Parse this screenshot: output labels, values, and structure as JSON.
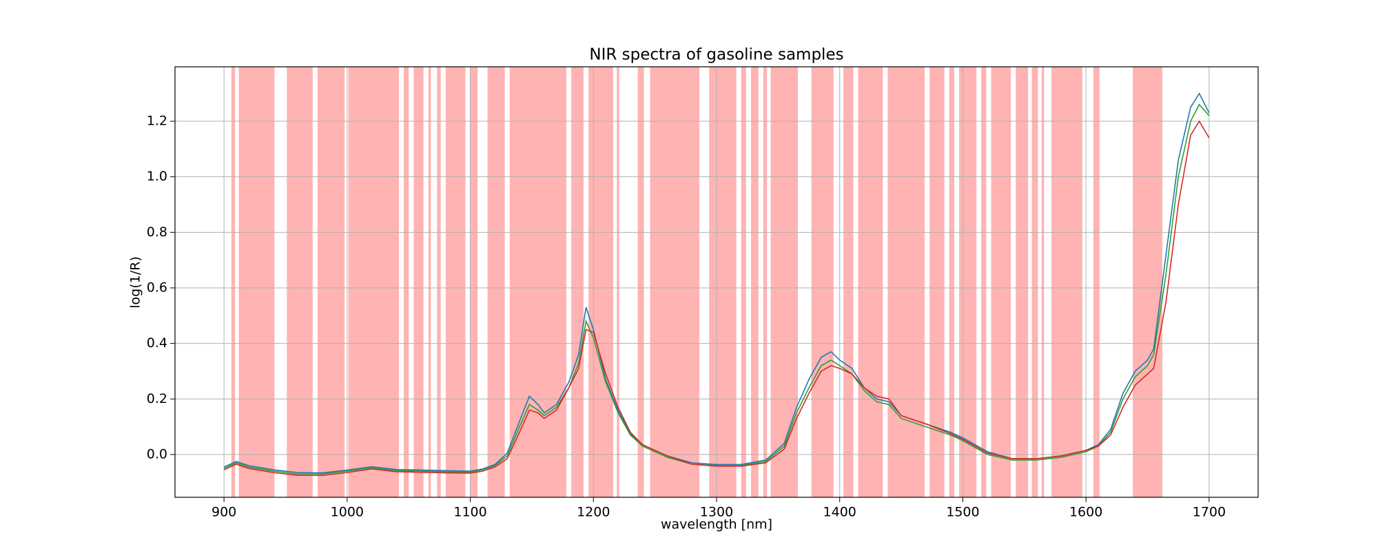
{
  "chart_data": {
    "type": "line",
    "title": "NIR spectra of gasoline samples",
    "xlabel": "wavelength [nm]",
    "ylabel": "log(1/R)",
    "x": [
      900,
      905,
      910,
      920,
      940,
      960,
      980,
      1000,
      1020,
      1040,
      1060,
      1080,
      1100,
      1110,
      1120,
      1130,
      1140,
      1148,
      1155,
      1160,
      1170,
      1180,
      1188,
      1194,
      1200,
      1210,
      1220,
      1230,
      1240,
      1260,
      1280,
      1300,
      1320,
      1340,
      1355,
      1365,
      1375,
      1385,
      1393,
      1400,
      1410,
      1420,
      1430,
      1440,
      1450,
      1470,
      1490,
      1500,
      1520,
      1540,
      1560,
      1580,
      1600,
      1610,
      1620,
      1630,
      1640,
      1650,
      1655,
      1665,
      1675,
      1685,
      1692,
      1700
    ],
    "series": [
      {
        "color": "#1f77b4",
        "values": [
          -0.045,
          -0.035,
          -0.025,
          -0.04,
          -0.055,
          -0.065,
          -0.066,
          -0.056,
          -0.044,
          -0.054,
          -0.056,
          -0.058,
          -0.06,
          -0.052,
          -0.036,
          0.005,
          0.12,
          0.21,
          0.18,
          0.15,
          0.18,
          0.26,
          0.36,
          0.53,
          0.45,
          0.27,
          0.16,
          0.075,
          0.035,
          -0.005,
          -0.03,
          -0.036,
          -0.036,
          -0.02,
          0.04,
          0.17,
          0.27,
          0.35,
          0.37,
          0.34,
          0.31,
          0.24,
          0.2,
          0.19,
          0.14,
          0.11,
          0.08,
          0.06,
          0.01,
          -0.015,
          -0.015,
          -0.005,
          0.015,
          0.035,
          0.09,
          0.22,
          0.3,
          0.34,
          0.38,
          0.72,
          1.06,
          1.25,
          1.3,
          1.23
        ]
      },
      {
        "color": "#2ca02c",
        "values": [
          -0.05,
          -0.04,
          -0.03,
          -0.045,
          -0.06,
          -0.07,
          -0.07,
          -0.06,
          -0.048,
          -0.058,
          -0.06,
          -0.062,
          -0.063,
          -0.055,
          -0.04,
          -0.005,
          0.1,
          0.18,
          0.16,
          0.14,
          0.17,
          0.24,
          0.33,
          0.48,
          0.42,
          0.26,
          0.15,
          0.07,
          0.03,
          -0.01,
          -0.035,
          -0.04,
          -0.04,
          -0.025,
          0.03,
          0.15,
          0.24,
          0.32,
          0.34,
          0.32,
          0.29,
          0.23,
          0.19,
          0.18,
          0.13,
          0.1,
          0.07,
          0.05,
          0.0,
          -0.02,
          -0.02,
          -0.01,
          0.01,
          0.03,
          0.08,
          0.2,
          0.28,
          0.32,
          0.36,
          0.65,
          1.0,
          1.2,
          1.26,
          1.22
        ]
      },
      {
        "color": "#d62728",
        "values": [
          -0.055,
          -0.045,
          -0.035,
          -0.05,
          -0.065,
          -0.075,
          -0.075,
          -0.065,
          -0.052,
          -0.062,
          -0.064,
          -0.066,
          -0.067,
          -0.06,
          -0.045,
          -0.015,
          0.08,
          0.16,
          0.15,
          0.13,
          0.16,
          0.24,
          0.31,
          0.45,
          0.44,
          0.29,
          0.17,
          0.08,
          0.035,
          -0.005,
          -0.035,
          -0.042,
          -0.042,
          -0.03,
          0.02,
          0.13,
          0.22,
          0.3,
          0.32,
          0.31,
          0.29,
          0.24,
          0.21,
          0.2,
          0.14,
          0.11,
          0.075,
          0.055,
          0.005,
          -0.015,
          -0.015,
          -0.005,
          0.015,
          0.03,
          0.07,
          0.17,
          0.25,
          0.29,
          0.31,
          0.55,
          0.9,
          1.15,
          1.2,
          1.14
        ]
      }
    ],
    "regions": [
      [
        906,
        909
      ],
      [
        912,
        941
      ],
      [
        951,
        972
      ],
      [
        976,
        998
      ],
      [
        1001,
        1042
      ],
      [
        1046,
        1050
      ],
      [
        1054,
        1062
      ],
      [
        1066,
        1068
      ],
      [
        1073,
        1076
      ],
      [
        1080,
        1096
      ],
      [
        1100,
        1106
      ],
      [
        1114,
        1128
      ],
      [
        1132,
        1178
      ],
      [
        1182,
        1192
      ],
      [
        1196,
        1216
      ],
      [
        1219,
        1221
      ],
      [
        1236,
        1241
      ],
      [
        1246,
        1286
      ],
      [
        1294,
        1316
      ],
      [
        1320,
        1324
      ],
      [
        1328,
        1334
      ],
      [
        1338,
        1341
      ],
      [
        1344,
        1366
      ],
      [
        1377,
        1395
      ],
      [
        1403,
        1411
      ],
      [
        1415,
        1435
      ],
      [
        1439,
        1469
      ],
      [
        1473,
        1485
      ],
      [
        1489,
        1493
      ],
      [
        1497,
        1511
      ],
      [
        1515,
        1519
      ],
      [
        1523,
        1539
      ],
      [
        1543,
        1553
      ],
      [
        1556,
        1561
      ],
      [
        1564,
        1566
      ],
      [
        1572,
        1597
      ],
      [
        1606,
        1611
      ],
      [
        1638,
        1662
      ]
    ],
    "region_color": "#ffb3b3",
    "xlim": [
      860.2,
      1739.8
    ],
    "ylim": [
      -0.154,
      1.396
    ],
    "xticks": [
      900,
      1000,
      1100,
      1200,
      1300,
      1400,
      1500,
      1600,
      1700
    ],
    "yticks": [
      {
        "value": 0,
        "label": "0.0"
      },
      {
        "value": 0.2,
        "label": "0.2"
      },
      {
        "value": 0.4,
        "label": "0.4"
      },
      {
        "value": 0.6,
        "label": "0.6"
      },
      {
        "value": 0.8,
        "label": "0.8"
      },
      {
        "value": 1,
        "label": "1.0"
      },
      {
        "value": 1.2,
        "label": "1.2"
      }
    ],
    "grid": true
  }
}
